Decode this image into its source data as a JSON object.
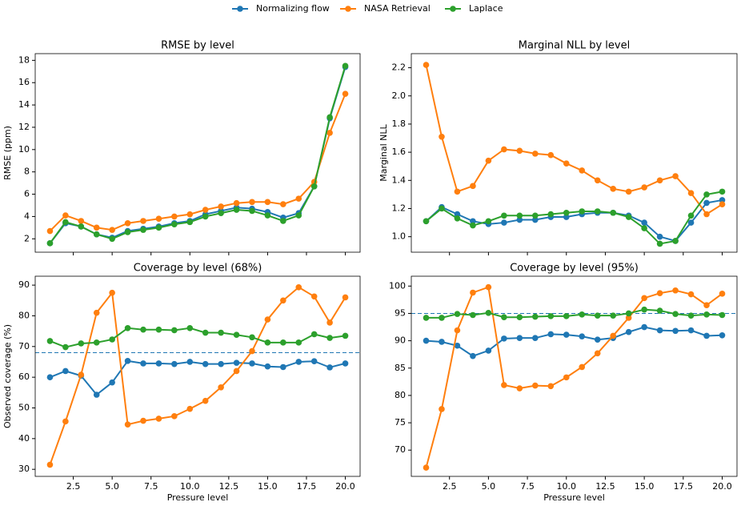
{
  "chart_data": [
    {
      "type": "line",
      "title": "RMSE by level",
      "ylabel": "RMSE (ppm)",
      "x": [
        1,
        2,
        3,
        4,
        5,
        6,
        7,
        8,
        9,
        10,
        11,
        12,
        13,
        14,
        15,
        16,
        17,
        18,
        19,
        20
      ],
      "xlim": [
        0.05,
        20.95
      ],
      "xticks": [
        2.5,
        5,
        7.5,
        10,
        12.5,
        15,
        17.5,
        20
      ],
      "ylim": [
        0.8,
        18.6
      ],
      "yticks": [
        2,
        4,
        6,
        8,
        10,
        12,
        14,
        16,
        18
      ],
      "series": [
        {
          "name": "Normalizing flow",
          "color": "#1f77b4",
          "values": [
            1.6,
            3.4,
            3.1,
            2.4,
            2.1,
            2.7,
            2.9,
            3.1,
            3.4,
            3.6,
            4.2,
            4.5,
            4.8,
            4.7,
            4.4,
            3.9,
            4.3,
            6.7,
            12.8,
            17.4
          ]
        },
        {
          "name": "NASA Retrieval",
          "color": "#ff7f0e",
          "values": [
            2.7,
            4.1,
            3.6,
            3.0,
            2.8,
            3.4,
            3.6,
            3.8,
            4.0,
            4.2,
            4.6,
            4.9,
            5.2,
            5.3,
            5.3,
            5.1,
            5.6,
            7.1,
            11.5,
            15.0
          ]
        },
        {
          "name": "Laplace",
          "color": "#2ca02c",
          "values": [
            1.6,
            3.5,
            3.1,
            2.4,
            2.0,
            2.6,
            2.8,
            3.0,
            3.3,
            3.5,
            4.0,
            4.3,
            4.6,
            4.5,
            4.1,
            3.6,
            4.1,
            6.7,
            12.9,
            17.5
          ]
        }
      ]
    },
    {
      "type": "line",
      "title": "Marginal NLL by level",
      "ylabel": "Marginal NLL",
      "x": [
        1,
        2,
        3,
        4,
        5,
        6,
        7,
        8,
        9,
        10,
        11,
        12,
        13,
        14,
        15,
        16,
        17,
        18,
        19,
        20
      ],
      "xlim": [
        0.05,
        20.95
      ],
      "xticks": [
        2.5,
        5,
        7.5,
        10,
        12.5,
        15,
        17.5,
        20
      ],
      "ylim": [
        0.89,
        2.3
      ],
      "yticks": [
        {
          "value": 1.0,
          "label": "1.0"
        },
        1.2,
        1.4,
        1.6,
        1.8,
        {
          "value": 2.0,
          "label": "2.0"
        },
        2.2
      ],
      "series": [
        {
          "color": "#1f77b4",
          "values": [
            1.11,
            1.21,
            1.16,
            1.11,
            1.09,
            1.1,
            1.12,
            1.12,
            1.14,
            1.14,
            1.16,
            1.17,
            1.17,
            1.15,
            1.1,
            1.0,
            0.97,
            1.1,
            1.24,
            1.26
          ]
        },
        {
          "color": "#ff7f0e",
          "values": [
            2.22,
            1.71,
            1.32,
            1.36,
            1.54,
            1.62,
            1.61,
            1.59,
            1.58,
            1.52,
            1.47,
            1.4,
            1.34,
            1.32,
            1.35,
            1.4,
            1.43,
            1.31,
            1.16,
            1.23
          ]
        },
        {
          "color": "#2ca02c",
          "values": [
            1.11,
            1.2,
            1.13,
            1.08,
            1.11,
            1.15,
            1.15,
            1.15,
            1.16,
            1.17,
            1.18,
            1.18,
            1.17,
            1.14,
            1.06,
            0.95,
            0.97,
            1.15,
            1.3,
            1.32
          ]
        }
      ]
    },
    {
      "type": "line",
      "title": "Coverage by level (68%)",
      "ylabel": "Observed coverage (%)",
      "xlabel": "Pressure level",
      "x": [
        1,
        2,
        3,
        4,
        5,
        6,
        7,
        8,
        9,
        10,
        11,
        12,
        13,
        14,
        15,
        16,
        17,
        18,
        19,
        20
      ],
      "xlim": [
        0.05,
        20.95
      ],
      "xticks": [
        2.5,
        {
          "value": 5,
          "label": "5.0"
        },
        7.5,
        {
          "value": 10,
          "label": "10.0"
        },
        12.5,
        {
          "value": 15,
          "label": "15.0"
        },
        17.5,
        {
          "value": 20,
          "label": "20.0"
        }
      ],
      "ylim": [
        27.7,
        92.9
      ],
      "yticks": [
        30,
        40,
        50,
        60,
        70,
        80,
        90
      ],
      "hline": 68,
      "series": [
        {
          "color": "#1f77b4",
          "values": [
            60.0,
            62.0,
            60.5,
            54.3,
            58.3,
            65.3,
            64.5,
            64.5,
            64.3,
            65.0,
            64.3,
            64.3,
            64.7,
            64.5,
            63.5,
            63.3,
            65.0,
            65.2,
            63.2,
            64.5
          ]
        },
        {
          "color": "#ff7f0e",
          "values": [
            31.5,
            45.6,
            60.8,
            81.0,
            87.5,
            44.6,
            45.8,
            46.5,
            47.3,
            49.7,
            52.3,
            56.7,
            62.0,
            68.5,
            78.8,
            85.0,
            89.3,
            86.3,
            77.8,
            86.0
          ]
        },
        {
          "color": "#2ca02c",
          "values": [
            71.8,
            69.8,
            71.0,
            71.3,
            72.3,
            76.0,
            75.5,
            75.5,
            75.3,
            76.0,
            74.5,
            74.5,
            73.8,
            73.0,
            71.3,
            71.3,
            71.3,
            74.0,
            72.8,
            73.5
          ]
        }
      ]
    },
    {
      "type": "line",
      "title": "Coverage by level (95%)",
      "xlabel": "Pressure level",
      "x": [
        1,
        2,
        3,
        4,
        5,
        6,
        7,
        8,
        9,
        10,
        11,
        12,
        13,
        14,
        15,
        16,
        17,
        18,
        19,
        20
      ],
      "xlim": [
        0.05,
        20.95
      ],
      "xticks": [
        2.5,
        {
          "value": 5,
          "label": "5.0"
        },
        7.5,
        {
          "value": 10,
          "label": "10.0"
        },
        12.5,
        {
          "value": 15,
          "label": "15.0"
        },
        17.5,
        {
          "value": 20,
          "label": "20.0"
        }
      ],
      "ylim": [
        65.2,
        101.8
      ],
      "yticks": [
        70,
        75,
        80,
        85,
        90,
        95,
        100
      ],
      "hline": 95,
      "series": [
        {
          "color": "#1f77b4",
          "values": [
            90.0,
            89.8,
            89.1,
            87.2,
            88.2,
            90.4,
            90.5,
            90.5,
            91.2,
            91.1,
            90.8,
            90.2,
            90.5,
            91.6,
            92.5,
            91.9,
            91.8,
            91.9,
            90.9,
            91.0
          ]
        },
        {
          "color": "#ff7f0e",
          "values": [
            66.8,
            77.5,
            91.9,
            98.8,
            99.8,
            81.9,
            81.3,
            81.8,
            81.7,
            83.3,
            85.2,
            87.7,
            90.9,
            94.2,
            97.8,
            98.7,
            99.2,
            98.5,
            96.5,
            98.6
          ]
        },
        {
          "color": "#2ca02c",
          "values": [
            94.2,
            94.2,
            94.9,
            94.7,
            95.1,
            94.3,
            94.3,
            94.4,
            94.5,
            94.5,
            94.8,
            94.6,
            94.6,
            95.0,
            95.7,
            95.5,
            94.9,
            94.6,
            94.8,
            94.7
          ]
        }
      ]
    }
  ]
}
